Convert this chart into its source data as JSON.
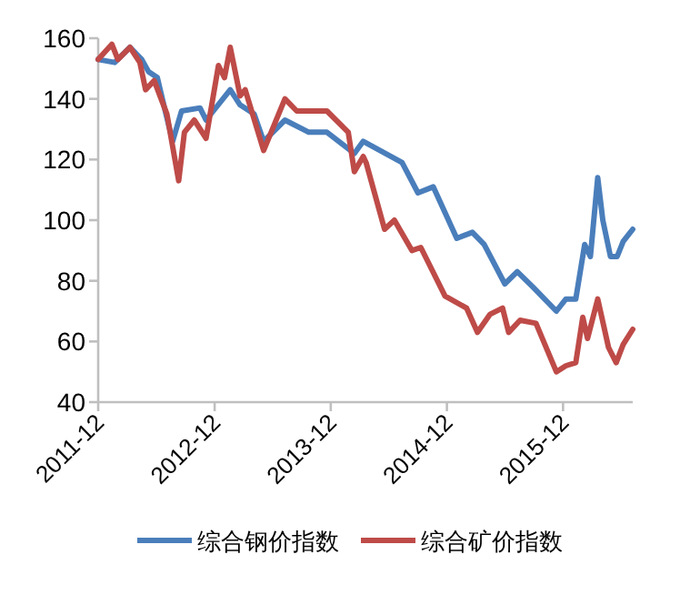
{
  "chart_data": {
    "type": "line",
    "xlim": [
      "2011-12",
      "2016-07-07"
    ],
    "xticks": [
      "2011-12",
      "2012-12",
      "2013-12",
      "2014-12",
      "2015-12"
    ],
    "ylim": [
      40,
      160
    ],
    "yticks": [
      40,
      60,
      80,
      100,
      120,
      140,
      160
    ],
    "grid": false,
    "legend": "bottom",
    "marker": "none",
    "line_style": "solid",
    "series": [
      {
        "name": "综合钢价指数",
        "color": "#4a7ebb",
        "x": [
          "2011-12-01",
          "2012-01-22",
          "2012-03-10",
          "2012-04-16",
          "2012-05-07",
          "2012-06-04",
          "2012-07-01",
          "2012-07-22",
          "2012-08-19",
          "2012-10-16",
          "2012-11-04",
          "2013-01-19",
          "2013-02-19",
          "2013-04-04",
          "2013-05-04",
          "2013-07-10",
          "2013-09-23",
          "2013-11-19",
          "2014-02-13",
          "2014-03-13",
          "2014-07-13",
          "2014-09-01",
          "2014-10-19",
          "2015-01-01",
          "2015-02-19",
          "2015-03-28",
          "2015-06-01",
          "2015-07-10",
          "2015-08-28",
          "2015-11-10",
          "2015-12-10",
          "2016-01-10",
          "2016-02-07",
          "2016-02-25",
          "2016-03-19",
          "2016-04-04",
          "2016-04-28",
          "2016-05-19",
          "2016-06-07",
          "2016-07-07"
        ],
        "values": [
          153,
          152,
          157,
          153,
          149,
          147,
          135,
          126,
          136,
          137,
          133,
          143,
          138,
          135,
          126,
          133,
          129,
          129,
          122,
          126,
          119,
          109,
          111,
          94,
          96,
          92,
          79,
          83,
          78,
          70,
          74,
          74,
          92,
          88,
          114,
          100,
          88,
          88,
          93,
          97
        ]
      },
      {
        "name": "综合矿价指数",
        "color": "#be4b48",
        "x": [
          "2011-12-01",
          "2012-01-13",
          "2012-02-01",
          "2012-03-10",
          "2012-04-10",
          "2012-04-28",
          "2012-05-25",
          "2012-07-04",
          "2012-08-10",
          "2012-08-28",
          "2012-09-28",
          "2012-11-04",
          "2012-12-13",
          "2013-01-01",
          "2013-01-19",
          "2013-02-19",
          "2013-03-07",
          "2013-05-04",
          "2013-07-10",
          "2013-08-16",
          "2013-11-19",
          "2014-01-25",
          "2014-02-13",
          "2014-03-13",
          "2014-03-22",
          "2014-05-19",
          "2014-06-19",
          "2014-08-13",
          "2014-09-10",
          "2014-11-25",
          "2015-02-01",
          "2015-03-07",
          "2015-04-16",
          "2015-05-25",
          "2015-06-13",
          "2015-07-19",
          "2015-09-07",
          "2015-10-13",
          "2015-11-10",
          "2015-12-10",
          "2016-01-10",
          "2016-02-01",
          "2016-02-16",
          "2016-03-19",
          "2016-04-22",
          "2016-05-16",
          "2016-06-07",
          "2016-07-07"
        ],
        "values": [
          153,
          158,
          153,
          157,
          152,
          143,
          146,
          135,
          113,
          129,
          133,
          127,
          151,
          147,
          157,
          141,
          143,
          123,
          140,
          136,
          136,
          129,
          116,
          121,
          119,
          97,
          100,
          90,
          91,
          75,
          71,
          63,
          69,
          71,
          63,
          67,
          66,
          57,
          50,
          52,
          53,
          68,
          61,
          74,
          58,
          53,
          59,
          64
        ]
      }
    ]
  }
}
